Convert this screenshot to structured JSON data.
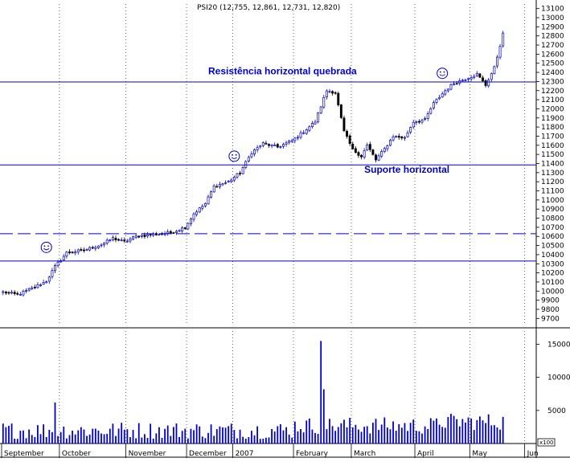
{
  "chart_data": {
    "type": "candlestick",
    "title": "PSI20 (12,755, 12,861, 12,731, 12,820)",
    "price_axis": {
      "ylim": [
        9650,
        13150
      ],
      "ticks": [
        13100,
        13000,
        12900,
        12800,
        12700,
        12600,
        12500,
        12400,
        12300,
        12200,
        12100,
        12000,
        11900,
        11800,
        11700,
        11600,
        11500,
        11400,
        11300,
        11200,
        11100,
        11000,
        10900,
        10800,
        10700,
        10600,
        10500,
        10400,
        10300,
        10200,
        10100,
        10000,
        9900,
        9800,
        9700
      ]
    },
    "volume_axis": {
      "ylim": [
        0,
        17000
      ],
      "ticks": [
        15000,
        10000,
        5000
      ],
      "unit_label": "x100"
    },
    "months": [
      {
        "label": "September",
        "start": 0
      },
      {
        "label": "October",
        "start": 20
      },
      {
        "label": "November",
        "start": 43
      },
      {
        "label": "December",
        "start": 64
      },
      {
        "label": "2007",
        "start": 80
      },
      {
        "label": "February",
        "start": 101
      },
      {
        "label": "March",
        "start": 121
      },
      {
        "label": "April",
        "start": 143
      },
      {
        "label": "May",
        "start": 162
      },
      {
        "label": "Jun",
        "start": 181
      }
    ],
    "total_slots": 185,
    "anchors": [
      [
        0,
        9990
      ],
      [
        5,
        9960
      ],
      [
        10,
        10030
      ],
      [
        15,
        10110
      ],
      [
        18,
        10270
      ],
      [
        22,
        10420
      ],
      [
        28,
        10450
      ],
      [
        34,
        10510
      ],
      [
        38,
        10580
      ],
      [
        42,
        10540
      ],
      [
        46,
        10600
      ],
      [
        52,
        10620
      ],
      [
        58,
        10640
      ],
      [
        63,
        10700
      ],
      [
        66,
        10850
      ],
      [
        70,
        10960
      ],
      [
        73,
        11150
      ],
      [
        78,
        11200
      ],
      [
        82,
        11300
      ],
      [
        86,
        11520
      ],
      [
        90,
        11620
      ],
      [
        95,
        11580
      ],
      [
        100,
        11650
      ],
      [
        104,
        11750
      ],
      [
        108,
        11860
      ],
      [
        112,
        12200
      ],
      [
        115,
        12180
      ],
      [
        118,
        11750
      ],
      [
        121,
        11550
      ],
      [
        124,
        11480
      ],
      [
        126,
        11600
      ],
      [
        129,
        11440
      ],
      [
        132,
        11560
      ],
      [
        135,
        11700
      ],
      [
        139,
        11680
      ],
      [
        142,
        11860
      ],
      [
        146,
        11880
      ],
      [
        149,
        12060
      ],
      [
        153,
        12200
      ],
      [
        156,
        12280
      ],
      [
        160,
        12330
      ],
      [
        164,
        12380
      ],
      [
        167,
        12260
      ],
      [
        170,
        12450
      ],
      [
        173,
        12820
      ]
    ],
    "lines": [
      {
        "type": "horizontal",
        "value": 12295,
        "style": "solid"
      },
      {
        "type": "horizontal",
        "value": 11385,
        "style": "solid"
      },
      {
        "type": "horizontal",
        "value": 10630,
        "style": "dashed"
      },
      {
        "type": "horizontal",
        "value": 10330,
        "style": "solid"
      }
    ],
    "annotations": [
      {
        "text": "Resistência horizontal quebrada",
        "x_slot": 71,
        "value": 12360
      },
      {
        "text": "Suporte horizontal",
        "x_slot": 125,
        "value": 11280
      }
    ],
    "smileys": [
      {
        "x_slot": 15,
        "value": 10480
      },
      {
        "x_slot": 80,
        "value": 11480
      },
      {
        "x_slot": 152,
        "value": 12390
      }
    ],
    "volume_spikes": [
      {
        "slot": 18,
        "value": 6200
      },
      {
        "slot": 110,
        "value": 15500
      },
      {
        "slot": 111,
        "value": 8200
      }
    ],
    "colors": {
      "up": "#0000cc",
      "down": "#000000",
      "lines": "#0000cc",
      "text": "#0000cc"
    }
  }
}
